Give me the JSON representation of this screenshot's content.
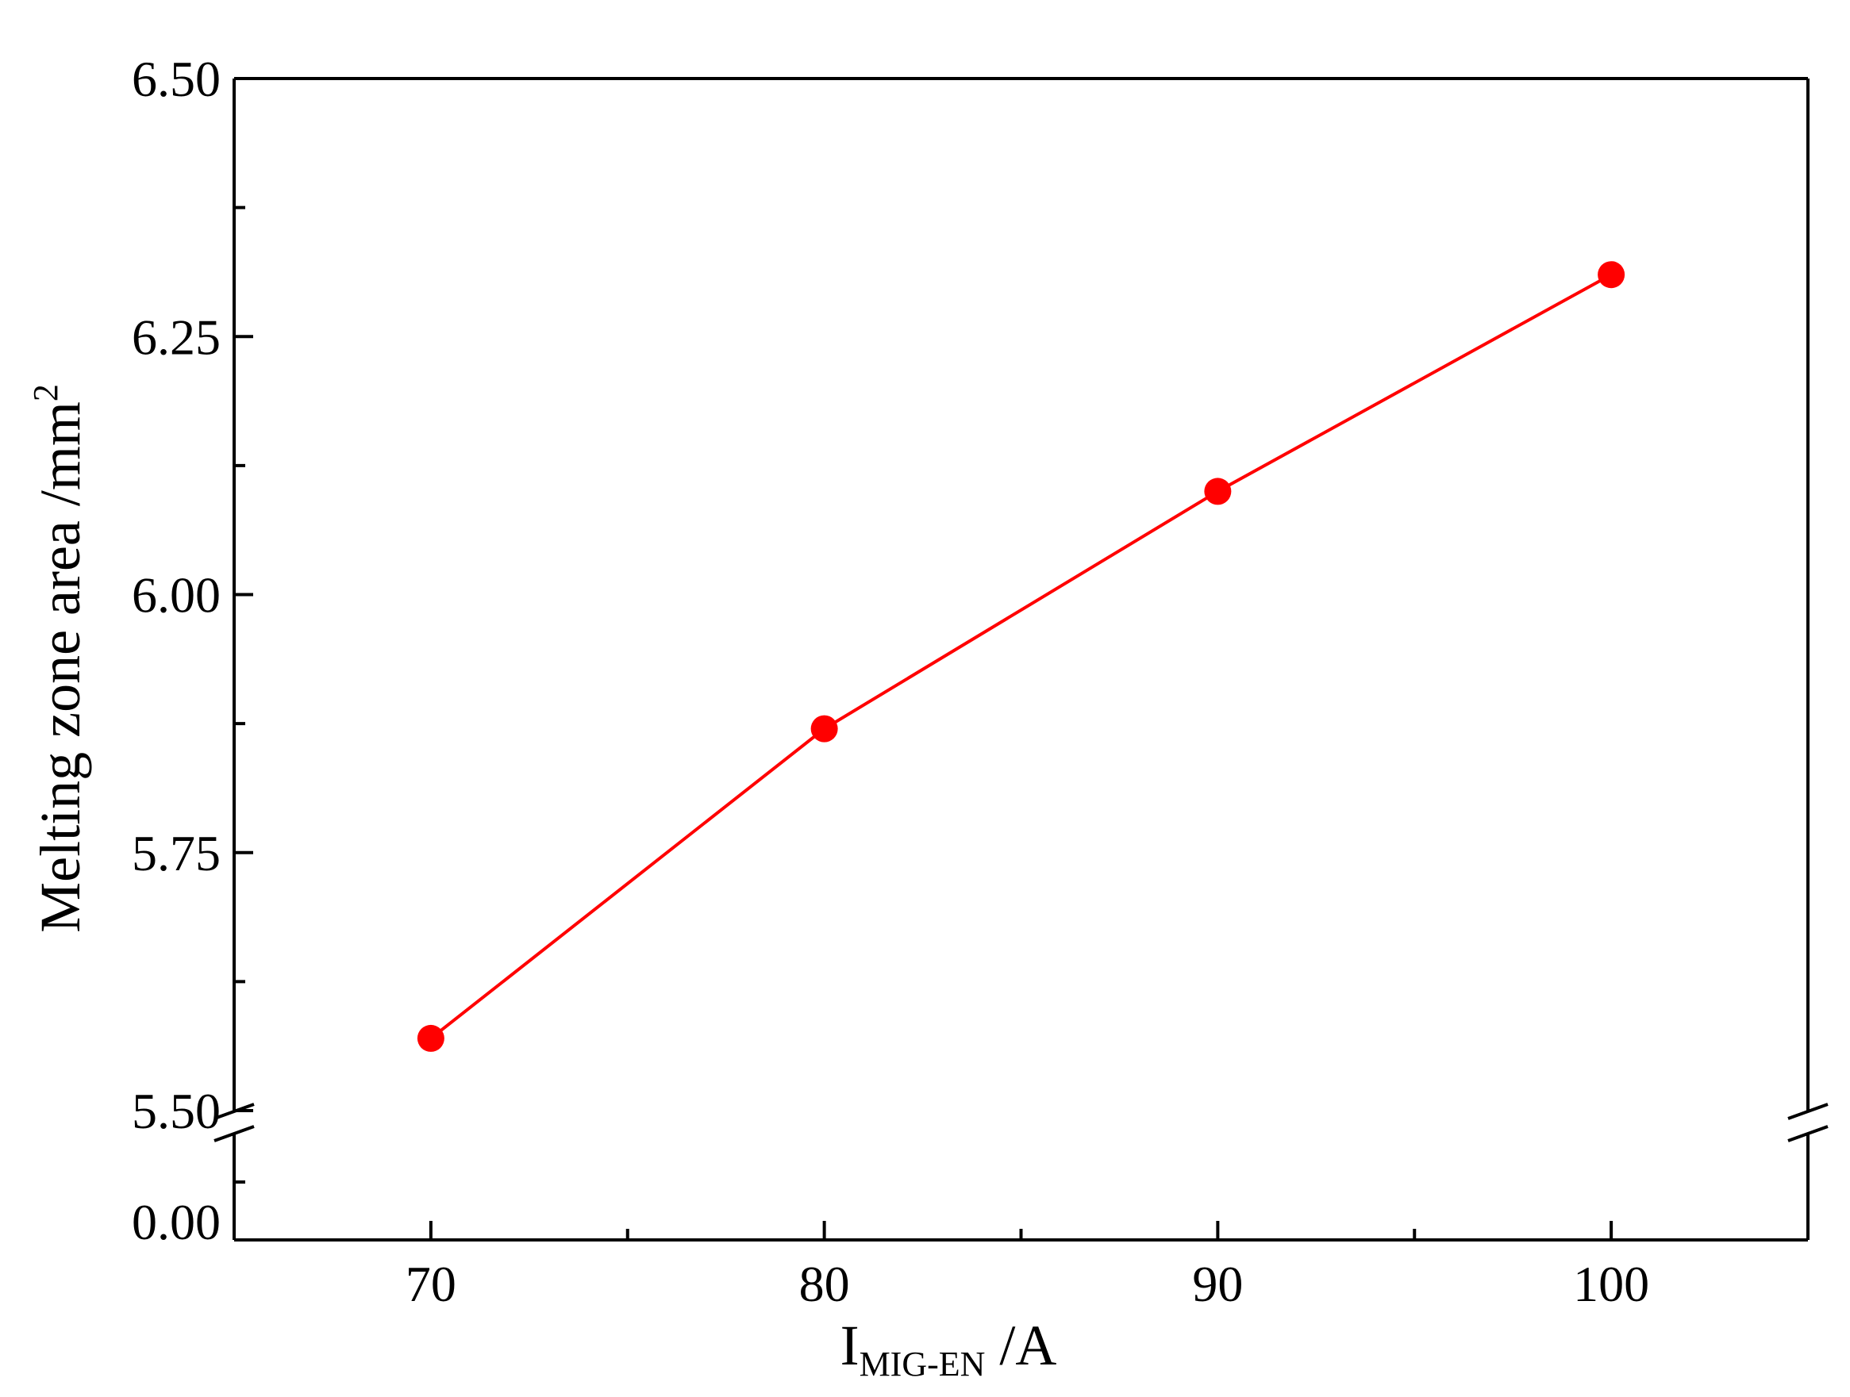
{
  "chart_data": {
    "type": "line",
    "xlabel": "I",
    "xlabel_subscript": "MIG-EN",
    "xlabel_unit": " /A",
    "ylabel": "Melting zone area /mm",
    "ylabel_superscript": "2",
    "x_ticks": [
      "70",
      "80",
      "90",
      "100"
    ],
    "xlim": [
      65,
      105
    ],
    "y_ticks_upper": [
      "5.50",
      "5.75",
      "6.00",
      "6.25",
      "6.50"
    ],
    "y_ticks_lower": [
      "0.00"
    ],
    "ylim_upper": [
      5.5,
      6.5
    ],
    "ylim_lower": [
      0.0,
      0.15
    ],
    "axis_break": true,
    "grid": false,
    "series": [
      {
        "x": [
          70,
          80,
          90,
          100
        ],
        "values": [
          5.57,
          5.87,
          6.1,
          6.31
        ],
        "color": "#ff0000",
        "marker": "circle"
      }
    ]
  }
}
